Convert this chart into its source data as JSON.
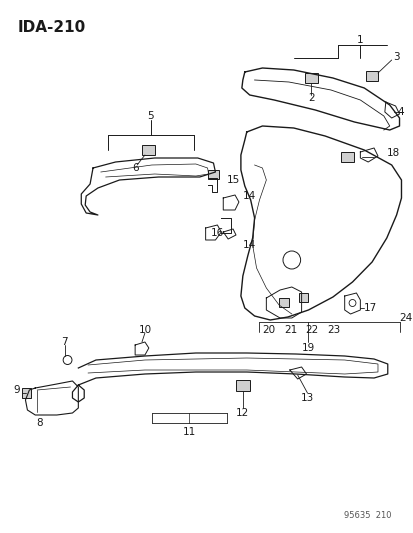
{
  "title": "IDA-210",
  "watermark": "95635  210",
  "bg_color": "#ffffff",
  "line_color": "#1a1a1a",
  "text_color": "#1a1a1a",
  "watermark_color": "#555555",
  "title_fontsize": 11,
  "label_fontsize": 7.5,
  "small_fontsize": 6.0,
  "figsize": [
    4.14,
    5.33
  ],
  "dpi": 100
}
